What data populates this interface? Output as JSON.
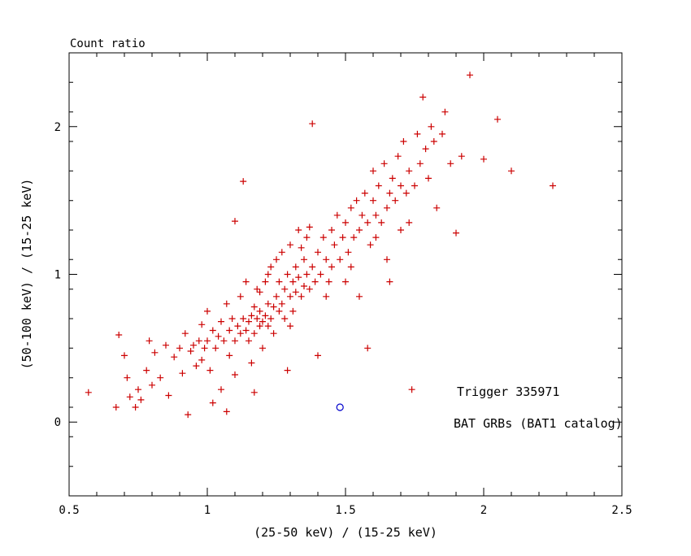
{
  "page": {
    "background": "#ffffff"
  },
  "annotations": {
    "trigger": {
      "text": "Trigger 335971",
      "color": "#cc0000"
    },
    "catalog": {
      "text": "BAT GRBs (BAT1 catalog)",
      "color": "#0000cc"
    }
  },
  "chart_data": {
    "type": "scatter",
    "title": "Count ratio",
    "xlabel": "(25-50 keV) / (15-25 keV)",
    "ylabel": "(50-100 keV) / (15-25 keV)",
    "xlim": [
      0.5,
      2.5
    ],
    "ylim": [
      -0.5,
      2.5
    ],
    "grid": false,
    "xticks": {
      "values": [
        0.5,
        1,
        1.5,
        2,
        2.5
      ],
      "labels": [
        "0.5",
        "1",
        "1.5",
        "2",
        "2.5"
      ]
    },
    "yticks": {
      "values": [
        0,
        1,
        2
      ],
      "labels": [
        "0",
        "1",
        "2"
      ]
    },
    "x_minor_step": 0.1,
    "y_minor_step": 0.2,
    "series": [
      {
        "name": "red-plus-markers",
        "marker": "plus",
        "color": "#cc0000",
        "points": [
          [
            0.57,
            0.2
          ],
          [
            0.67,
            0.1
          ],
          [
            0.68,
            0.59
          ],
          [
            0.7,
            0.45
          ],
          [
            0.71,
            0.3
          ],
          [
            0.72,
            0.17
          ],
          [
            0.74,
            0.1
          ],
          [
            0.75,
            0.22
          ],
          [
            0.76,
            0.15
          ],
          [
            0.78,
            0.35
          ],
          [
            0.79,
            0.55
          ],
          [
            0.8,
            0.25
          ],
          [
            0.81,
            0.47
          ],
          [
            0.83,
            0.3
          ],
          [
            0.85,
            0.52
          ],
          [
            0.86,
            0.18
          ],
          [
            0.88,
            0.44
          ],
          [
            0.9,
            0.5
          ],
          [
            0.91,
            0.33
          ],
          [
            0.92,
            0.6
          ],
          [
            0.93,
            0.05
          ],
          [
            0.94,
            0.48
          ],
          [
            0.95,
            0.52
          ],
          [
            0.96,
            0.38
          ],
          [
            0.97,
            0.55
          ],
          [
            0.98,
            0.42
          ],
          [
            0.98,
            0.66
          ],
          [
            0.99,
            0.5
          ],
          [
            1.0,
            0.55
          ],
          [
            1.0,
            0.75
          ],
          [
            1.01,
            0.35
          ],
          [
            1.02,
            0.62
          ],
          [
            1.02,
            0.13
          ],
          [
            1.03,
            0.5
          ],
          [
            1.04,
            0.58
          ],
          [
            1.05,
            0.22
          ],
          [
            1.05,
            0.68
          ],
          [
            1.06,
            0.55
          ],
          [
            1.07,
            0.8
          ],
          [
            1.07,
            0.07
          ],
          [
            1.08,
            0.45
          ],
          [
            1.08,
            0.62
          ],
          [
            1.09,
            0.7
          ],
          [
            1.1,
            0.55
          ],
          [
            1.1,
            0.32
          ],
          [
            1.1,
            1.36
          ],
          [
            1.11,
            0.65
          ],
          [
            1.12,
            0.6
          ],
          [
            1.12,
            0.85
          ],
          [
            1.13,
            0.7
          ],
          [
            1.13,
            1.63
          ],
          [
            1.14,
            0.62
          ],
          [
            1.14,
            0.95
          ],
          [
            1.15,
            0.68
          ],
          [
            1.15,
            0.55
          ],
          [
            1.16,
            0.72
          ],
          [
            1.16,
            0.4
          ],
          [
            1.17,
            0.6
          ],
          [
            1.17,
            0.78
          ],
          [
            1.17,
            0.2
          ],
          [
            1.18,
            0.7
          ],
          [
            1.18,
            0.9
          ],
          [
            1.19,
            0.65
          ],
          [
            1.19,
            0.75
          ],
          [
            1.19,
            0.88
          ],
          [
            1.2,
            0.68
          ],
          [
            1.2,
            0.5
          ],
          [
            1.21,
            0.72
          ],
          [
            1.21,
            0.95
          ],
          [
            1.22,
            0.65
          ],
          [
            1.22,
            0.8
          ],
          [
            1.22,
            1.0
          ],
          [
            1.23,
            0.7
          ],
          [
            1.23,
            1.05
          ],
          [
            1.24,
            0.78
          ],
          [
            1.24,
            0.6
          ],
          [
            1.25,
            0.85
          ],
          [
            1.25,
            1.1
          ],
          [
            1.26,
            0.75
          ],
          [
            1.26,
            0.95
          ],
          [
            1.27,
            0.8
          ],
          [
            1.27,
            1.15
          ],
          [
            1.28,
            0.7
          ],
          [
            1.28,
            0.9
          ],
          [
            1.29,
            1.0
          ],
          [
            1.29,
            0.35
          ],
          [
            1.3,
            0.85
          ],
          [
            1.3,
            1.2
          ],
          [
            1.3,
            0.65
          ],
          [
            1.31,
            0.95
          ],
          [
            1.31,
            0.75
          ],
          [
            1.32,
            1.05
          ],
          [
            1.32,
            0.88
          ],
          [
            1.33,
            1.3
          ],
          [
            1.33,
            0.98
          ],
          [
            1.34,
            0.85
          ],
          [
            1.34,
            1.18
          ],
          [
            1.35,
            1.1
          ],
          [
            1.35,
            0.92
          ],
          [
            1.36,
            1.0
          ],
          [
            1.36,
            1.25
          ],
          [
            1.37,
            0.9
          ],
          [
            1.37,
            1.32
          ],
          [
            1.38,
            1.05
          ],
          [
            1.38,
            2.02
          ],
          [
            1.39,
            0.95
          ],
          [
            1.4,
            1.15
          ],
          [
            1.4,
            0.45
          ],
          [
            1.41,
            1.0
          ],
          [
            1.42,
            1.25
          ],
          [
            1.43,
            1.1
          ],
          [
            1.43,
            0.85
          ],
          [
            1.44,
            0.95
          ],
          [
            1.45,
            1.3
          ],
          [
            1.45,
            1.05
          ],
          [
            1.46,
            1.2
          ],
          [
            1.47,
            1.4
          ],
          [
            1.48,
            1.1
          ],
          [
            1.49,
            1.25
          ],
          [
            1.5,
            1.35
          ],
          [
            1.5,
            0.95
          ],
          [
            1.51,
            1.15
          ],
          [
            1.52,
            1.45
          ],
          [
            1.52,
            1.05
          ],
          [
            1.53,
            1.25
          ],
          [
            1.54,
            1.5
          ],
          [
            1.55,
            1.3
          ],
          [
            1.55,
            0.85
          ],
          [
            1.56,
            1.4
          ],
          [
            1.57,
            1.55
          ],
          [
            1.58,
            1.35
          ],
          [
            1.58,
            0.5
          ],
          [
            1.59,
            1.2
          ],
          [
            1.6,
            1.5
          ],
          [
            1.6,
            1.7
          ],
          [
            1.61,
            1.4
          ],
          [
            1.61,
            1.25
          ],
          [
            1.62,
            1.6
          ],
          [
            1.63,
            1.35
          ],
          [
            1.64,
            1.75
          ],
          [
            1.65,
            1.45
          ],
          [
            1.65,
            1.1
          ],
          [
            1.66,
            1.55
          ],
          [
            1.66,
            0.95
          ],
          [
            1.67,
            1.65
          ],
          [
            1.68,
            1.5
          ],
          [
            1.69,
            1.8
          ],
          [
            1.7,
            1.6
          ],
          [
            1.7,
            1.3
          ],
          [
            1.71,
            1.9
          ],
          [
            1.72,
            1.55
          ],
          [
            1.73,
            1.7
          ],
          [
            1.73,
            1.35
          ],
          [
            1.74,
            0.22
          ],
          [
            1.75,
            1.6
          ],
          [
            1.76,
            1.95
          ],
          [
            1.77,
            1.75
          ],
          [
            1.78,
            2.2
          ],
          [
            1.79,
            1.85
          ],
          [
            1.8,
            1.65
          ],
          [
            1.81,
            2.0
          ],
          [
            1.82,
            1.9
          ],
          [
            1.83,
            1.45
          ],
          [
            1.85,
            1.95
          ],
          [
            1.86,
            2.1
          ],
          [
            1.88,
            1.75
          ],
          [
            1.9,
            1.28
          ],
          [
            1.92,
            1.8
          ],
          [
            1.95,
            2.35
          ],
          [
            2.0,
            1.78
          ],
          [
            2.05,
            2.05
          ],
          [
            2.1,
            1.7
          ],
          [
            2.25,
            1.6
          ]
        ]
      },
      {
        "name": "blue-circle-marker",
        "marker": "open-circle",
        "color": "#0000cc",
        "points": [
          [
            1.48,
            0.1
          ]
        ]
      }
    ]
  }
}
